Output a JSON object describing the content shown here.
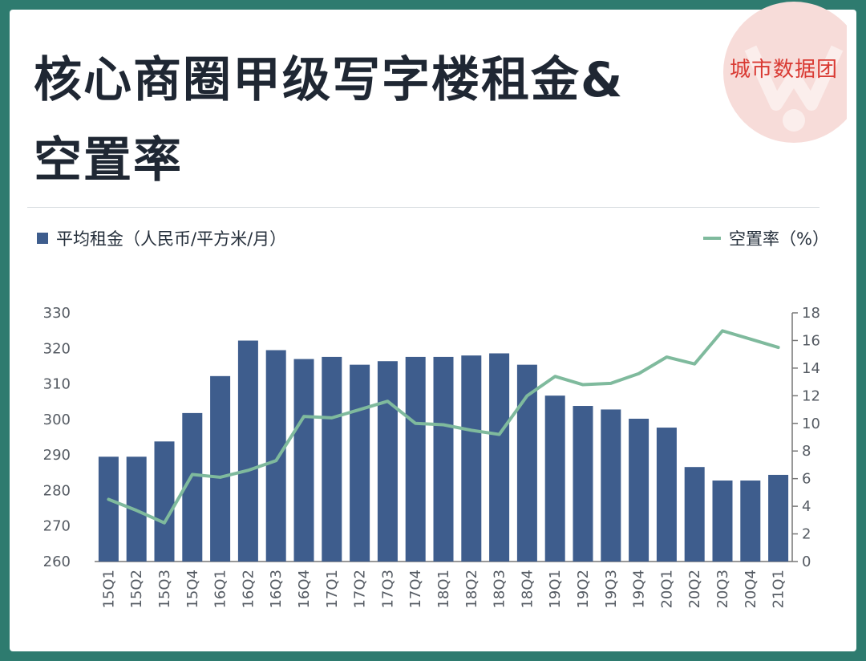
{
  "header": {
    "title_line1": "核心商圈甲级写字楼租金&",
    "title_line2": "空置率",
    "brand": "城市数据团"
  },
  "legend": {
    "bar_label": "平均租金（人民币/平方米/月）",
    "line_label": "空置率（%）"
  },
  "colors": {
    "bar": "#3e5d8d",
    "line": "#7fba9d",
    "brand": "#d93a33",
    "frame": "#2e7b6f"
  },
  "chart_data": {
    "type": "bar",
    "categories": [
      "15Q1",
      "15Q2",
      "15Q3",
      "15Q4",
      "16Q1",
      "16Q2",
      "16Q3",
      "16Q4",
      "17Q1",
      "17Q2",
      "17Q3",
      "17Q4",
      "18Q1",
      "18Q2",
      "18Q3",
      "18Q4",
      "19Q1",
      "19Q2",
      "19Q3",
      "19Q4",
      "20Q1",
      "20Q2",
      "20Q3",
      "20Q4",
      "21Q1"
    ],
    "series": [
      {
        "name": "平均租金（人民币/平方米/月）",
        "type": "bar",
        "axis": "left",
        "values": [
          289.5,
          289.5,
          293.8,
          301.8,
          312.2,
          322.2,
          319.5,
          317.0,
          317.6,
          315.4,
          316.4,
          317.6,
          317.6,
          318.0,
          318.6,
          315.4,
          306.7,
          303.8,
          302.8,
          300.2,
          297.7,
          286.6,
          282.8,
          282.8,
          284.4
        ]
      },
      {
        "name": "空置率（%）",
        "type": "line",
        "axis": "right",
        "values": [
          4.5,
          3.7,
          2.8,
          6.3,
          6.1,
          6.6,
          7.3,
          10.5,
          10.4,
          11.0,
          11.6,
          10.0,
          9.9,
          9.5,
          9.2,
          12.0,
          13.4,
          12.8,
          12.9,
          13.6,
          14.8,
          14.3,
          16.7,
          16.1,
          15.5
        ]
      }
    ],
    "y_left": {
      "ylim": [
        260,
        330
      ],
      "ticks": [
        "260",
        "270",
        "280",
        "290",
        "300",
        "310",
        "320",
        "330"
      ]
    },
    "y_right": {
      "ylim": [
        0,
        18
      ],
      "ticks": [
        "0",
        "2",
        "4",
        "6",
        "8",
        "10",
        "12",
        "14",
        "16",
        "18"
      ]
    },
    "legend": "top"
  }
}
